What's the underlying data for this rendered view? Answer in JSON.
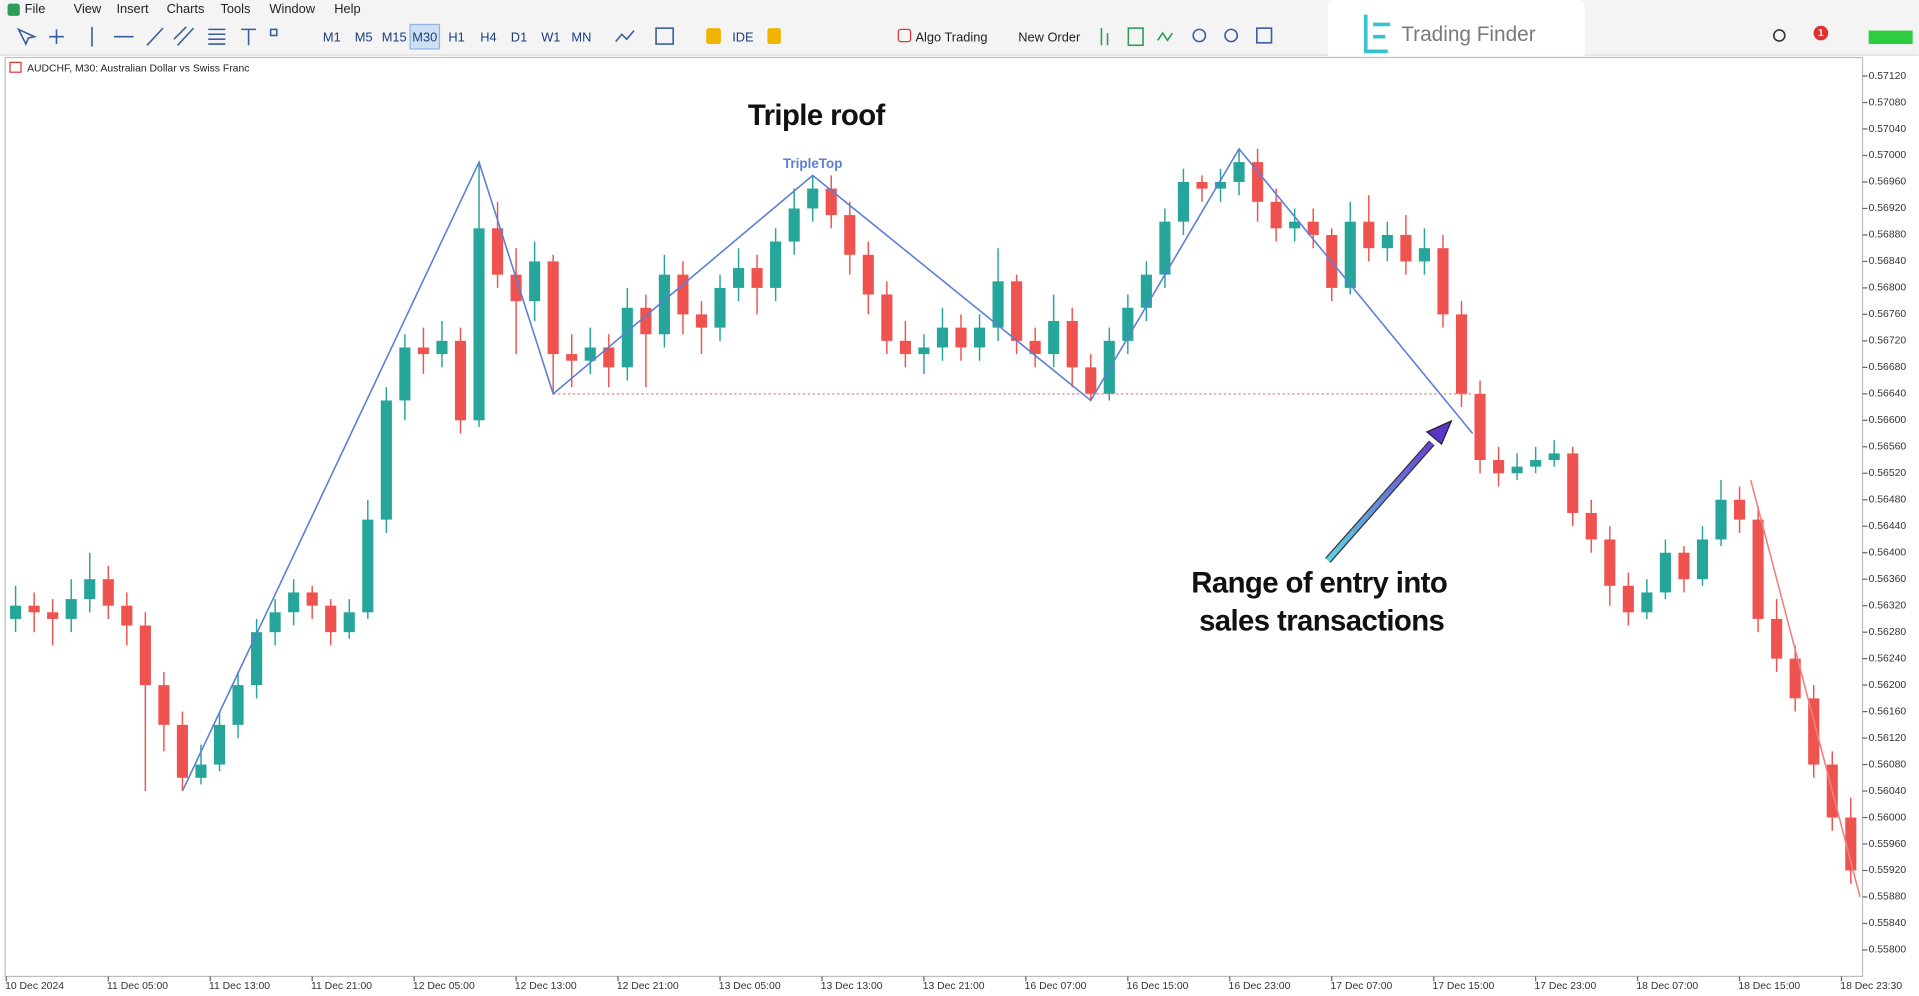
{
  "menu": [
    "File",
    "View",
    "Insert",
    "Charts",
    "Tools",
    "Window",
    "Help"
  ],
  "toolbar": {
    "timeframes": [
      "M1",
      "M5",
      "M15",
      "M30",
      "H1",
      "H4",
      "D1",
      "W1",
      "MN"
    ],
    "active": "M30",
    "ide": "IDE",
    "algo_trading": "Algo Trading",
    "new_order": "New Order",
    "notifications": 1
  },
  "logo": "Trading Finder",
  "chart_data": {
    "type": "candlestick",
    "title": "AUDCHF, M30:  Australian Dollar vs Swiss Franc",
    "bull_color": "#26a69a",
    "bear_color": "#ef5350",
    "xlim": [
      -0.5,
      99.5
    ],
    "ylim": [
      0.5576,
      0.57148
    ],
    "xticks": [
      {
        "value": -0.5,
        "label": "10 Dec 2024"
      },
      {
        "value": 5,
        "label": "11 Dec 05:00"
      },
      {
        "value": 10.5,
        "label": "11 Dec 13:00"
      },
      {
        "value": 16,
        "label": "11 Dec 21:00"
      },
      {
        "value": 21.5,
        "label": "12 Dec 05:00"
      },
      {
        "value": 27,
        "label": "12 Dec 13:00"
      },
      {
        "value": 32.5,
        "label": "12 Dec 21:00"
      },
      {
        "value": 38,
        "label": "13 Dec 05:00"
      },
      {
        "value": 43.5,
        "label": "13 Dec 13:00"
      },
      {
        "value": 49,
        "label": "13 Dec 21:00"
      },
      {
        "value": 54.5,
        "label": "16 Dec 07:00"
      },
      {
        "value": 60,
        "label": "16 Dec 15:00"
      },
      {
        "value": 65.5,
        "label": "16 Dec 23:00"
      },
      {
        "value": 71,
        "label": "17 Dec 07:00"
      },
      {
        "value": 76.5,
        "label": "17 Dec 15:00"
      },
      {
        "value": 82,
        "label": "17 Dec 23:00"
      },
      {
        "value": 87.5,
        "label": "18 Dec 07:00"
      },
      {
        "value": 93,
        "label": "18 Dec 15:00"
      },
      {
        "value": 98.5,
        "label": "18 Dec 23:30"
      }
    ],
    "yticks": [
      {
        "value": 0.5712,
        "label": "0.57120"
      },
      {
        "value": 0.5708,
        "label": "0.57080"
      },
      {
        "value": 0.5704,
        "label": "0.57040"
      },
      {
        "value": 0.57,
        "label": "0.57000"
      },
      {
        "value": 0.5696,
        "label": "0.56960"
      },
      {
        "value": 0.5692,
        "label": "0.56920"
      },
      {
        "value": 0.5688,
        "label": "0.56880"
      },
      {
        "value": 0.5684,
        "label": "0.56840"
      },
      {
        "value": 0.568,
        "label": "0.56800"
      },
      {
        "value": 0.5676,
        "label": "0.56760"
      },
      {
        "value": 0.5672,
        "label": "0.56720"
      },
      {
        "value": 0.5668,
        "label": "0.56680"
      },
      {
        "value": 0.5664,
        "label": "0.56640"
      },
      {
        "value": 0.566,
        "label": "0.56600"
      },
      {
        "value": 0.5656,
        "label": "0.56560"
      },
      {
        "value": 0.5652,
        "label": "0.56520"
      },
      {
        "value": 0.5648,
        "label": "0.56480"
      },
      {
        "value": 0.5644,
        "label": "0.56440"
      },
      {
        "value": 0.564,
        "label": "0.56400"
      },
      {
        "value": 0.5636,
        "label": "0.56360"
      },
      {
        "value": 0.5632,
        "label": "0.56320"
      },
      {
        "value": 0.5628,
        "label": "0.56280"
      },
      {
        "value": 0.5624,
        "label": "0.56240"
      },
      {
        "value": 0.562,
        "label": "0.56200"
      },
      {
        "value": 0.5616,
        "label": "0.56160"
      },
      {
        "value": 0.5612,
        "label": "0.56120"
      },
      {
        "value": 0.5608,
        "label": "0.56080"
      },
      {
        "value": 0.5604,
        "label": "0.56040"
      },
      {
        "value": 0.56,
        "label": "0.56000"
      },
      {
        "value": 0.5596,
        "label": "0.55960"
      },
      {
        "value": 0.5592,
        "label": "0.55920"
      },
      {
        "value": 0.5588,
        "label": "0.55880"
      },
      {
        "value": 0.5584,
        "label": "0.55840"
      },
      {
        "value": 0.558,
        "label": "0.55800"
      }
    ],
    "candles": [
      [
        0.563,
        0.5635,
        0.5628,
        0.5632
      ],
      [
        0.5632,
        0.5634,
        0.5628,
        0.5631
      ],
      [
        0.5631,
        0.5633,
        0.5626,
        0.563
      ],
      [
        0.563,
        0.5636,
        0.5628,
        0.5633
      ],
      [
        0.5633,
        0.564,
        0.5631,
        0.5636
      ],
      [
        0.5636,
        0.5638,
        0.563,
        0.5632
      ],
      [
        0.5632,
        0.5634,
        0.5626,
        0.5629
      ],
      [
        0.5629,
        0.5631,
        0.5604,
        0.562
      ],
      [
        0.562,
        0.5622,
        0.561,
        0.5614
      ],
      [
        0.5614,
        0.5616,
        0.5604,
        0.5606
      ],
      [
        0.5606,
        0.5611,
        0.5605,
        0.5608
      ],
      [
        0.5608,
        0.5616,
        0.5607,
        0.5614
      ],
      [
        0.5614,
        0.5622,
        0.5612,
        0.562
      ],
      [
        0.562,
        0.563,
        0.5618,
        0.5628
      ],
      [
        0.5628,
        0.5633,
        0.5626,
        0.5631
      ],
      [
        0.5631,
        0.5636,
        0.5629,
        0.5634
      ],
      [
        0.5634,
        0.5635,
        0.563,
        0.5632
      ],
      [
        0.5632,
        0.5633,
        0.5626,
        0.5628
      ],
      [
        0.5628,
        0.5633,
        0.5627,
        0.5631
      ],
      [
        0.5631,
        0.5648,
        0.563,
        0.5645
      ],
      [
        0.5645,
        0.5665,
        0.5643,
        0.5663
      ],
      [
        0.5663,
        0.5673,
        0.566,
        0.5671
      ],
      [
        0.5671,
        0.5674,
        0.5667,
        0.567
      ],
      [
        0.567,
        0.5675,
        0.5668,
        0.5672
      ],
      [
        0.5672,
        0.5674,
        0.5658,
        0.566
      ],
      [
        0.566,
        0.5699,
        0.5659,
        0.5689
      ],
      [
        0.5689,
        0.5693,
        0.568,
        0.5682
      ],
      [
        0.5682,
        0.5686,
        0.567,
        0.5678
      ],
      [
        0.5678,
        0.5687,
        0.5675,
        0.5684
      ],
      [
        0.5684,
        0.5685,
        0.5664,
        0.567
      ],
      [
        0.567,
        0.5673,
        0.5665,
        0.5669
      ],
      [
        0.5669,
        0.5674,
        0.5667,
        0.5671
      ],
      [
        0.5671,
        0.5673,
        0.5665,
        0.5668
      ],
      [
        0.5668,
        0.568,
        0.5666,
        0.5677
      ],
      [
        0.5677,
        0.5679,
        0.5665,
        0.5673
      ],
      [
        0.5673,
        0.5685,
        0.5671,
        0.5682
      ],
      [
        0.5682,
        0.5684,
        0.5673,
        0.5676
      ],
      [
        0.5676,
        0.5678,
        0.567,
        0.5674
      ],
      [
        0.5674,
        0.5682,
        0.5672,
        0.568
      ],
      [
        0.568,
        0.5686,
        0.5678,
        0.5683
      ],
      [
        0.5683,
        0.5685,
        0.5676,
        0.568
      ],
      [
        0.568,
        0.5689,
        0.5678,
        0.5687
      ],
      [
        0.5687,
        0.5695,
        0.5685,
        0.5692
      ],
      [
        0.5692,
        0.5697,
        0.569,
        0.5695
      ],
      [
        0.5695,
        0.5697,
        0.5689,
        0.5691
      ],
      [
        0.5691,
        0.5693,
        0.5682,
        0.5685
      ],
      [
        0.5685,
        0.5687,
        0.5676,
        0.5679
      ],
      [
        0.5679,
        0.5681,
        0.567,
        0.5672
      ],
      [
        0.5672,
        0.5675,
        0.5668,
        0.567
      ],
      [
        0.567,
        0.5673,
        0.5667,
        0.5671
      ],
      [
        0.5671,
        0.5677,
        0.5669,
        0.5674
      ],
      [
        0.5674,
        0.5676,
        0.5669,
        0.5671
      ],
      [
        0.5671,
        0.5676,
        0.5669,
        0.5674
      ],
      [
        0.5674,
        0.5686,
        0.5672,
        0.5681
      ],
      [
        0.5681,
        0.5682,
        0.567,
        0.5672
      ],
      [
        0.5672,
        0.5674,
        0.5668,
        0.567
      ],
      [
        0.567,
        0.5679,
        0.5668,
        0.5675
      ],
      [
        0.5675,
        0.5677,
        0.5665,
        0.5668
      ],
      [
        0.5668,
        0.567,
        0.5663,
        0.5664
      ],
      [
        0.5664,
        0.5674,
        0.5663,
        0.5672
      ],
      [
        0.5672,
        0.5679,
        0.567,
        0.5677
      ],
      [
        0.5677,
        0.5684,
        0.5675,
        0.5682
      ],
      [
        0.5682,
        0.5692,
        0.568,
        0.569
      ],
      [
        0.569,
        0.5698,
        0.5688,
        0.5696
      ],
      [
        0.5696,
        0.5697,
        0.5693,
        0.5695
      ],
      [
        0.5695,
        0.5698,
        0.5693,
        0.5696
      ],
      [
        0.5696,
        0.5701,
        0.5694,
        0.5699
      ],
      [
        0.5699,
        0.5701,
        0.569,
        0.5693
      ],
      [
        0.5693,
        0.5695,
        0.5687,
        0.5689
      ],
      [
        0.5689,
        0.5692,
        0.5687,
        0.569
      ],
      [
        0.569,
        0.5692,
        0.5686,
        0.5688
      ],
      [
        0.5688,
        0.5689,
        0.5678,
        0.568
      ],
      [
        0.568,
        0.5693,
        0.5679,
        0.569
      ],
      [
        0.569,
        0.5694,
        0.5684,
        0.5686
      ],
      [
        0.5686,
        0.569,
        0.5684,
        0.5688
      ],
      [
        0.5688,
        0.5691,
        0.5682,
        0.5684
      ],
      [
        0.5684,
        0.5689,
        0.5682,
        0.5686
      ],
      [
        0.5686,
        0.5688,
        0.5674,
        0.5676
      ],
      [
        0.5676,
        0.5678,
        0.5662,
        0.5664
      ],
      [
        0.5664,
        0.5666,
        0.5652,
        0.5654
      ],
      [
        0.5654,
        0.5656,
        0.565,
        0.5652
      ],
      [
        0.5652,
        0.5655,
        0.5651,
        0.5653
      ],
      [
        0.5653,
        0.5656,
        0.5652,
        0.5654
      ],
      [
        0.5654,
        0.5657,
        0.5653,
        0.5655
      ],
      [
        0.5655,
        0.5656,
        0.5644,
        0.5646
      ],
      [
        0.5646,
        0.5648,
        0.564,
        0.5642
      ],
      [
        0.5642,
        0.5644,
        0.5632,
        0.5635
      ],
      [
        0.5635,
        0.5637,
        0.5629,
        0.5631
      ],
      [
        0.5631,
        0.5636,
        0.563,
        0.5634
      ],
      [
        0.5634,
        0.5642,
        0.5633,
        0.564
      ],
      [
        0.564,
        0.5641,
        0.5634,
        0.5636
      ],
      [
        0.5636,
        0.5644,
        0.5635,
        0.5642
      ],
      [
        0.5642,
        0.5651,
        0.5641,
        0.5648
      ],
      [
        0.5648,
        0.565,
        0.5643,
        0.5645
      ],
      [
        0.5645,
        0.5647,
        0.5628,
        0.563
      ],
      [
        0.563,
        0.5633,
        0.5622,
        0.5624
      ],
      [
        0.5624,
        0.5626,
        0.5616,
        0.5618
      ],
      [
        0.5618,
        0.562,
        0.5606,
        0.5608
      ],
      [
        0.5608,
        0.561,
        0.5598,
        0.56
      ],
      [
        0.56,
        0.5603,
        0.559,
        0.5592
      ]
    ],
    "pattern": {
      "name": "TripleTop",
      "color": "#5b7fd6",
      "x": [
        9,
        25,
        29,
        43,
        58,
        66,
        78.6
      ],
      "y": [
        0.5604,
        0.5699,
        0.5664,
        0.5697,
        0.5663,
        0.5701,
        0.5658
      ]
    },
    "neckline": {
      "color": "#f08080",
      "x": [
        29,
        78.6
      ],
      "y": [
        0.5664,
        0.5664
      ]
    },
    "trend": {
      "color": "#f08080",
      "x": [
        93.6,
        99.5
      ],
      "y": [
        0.5651,
        0.5588
      ]
    },
    "annotations": {
      "title": "Triple roof",
      "entry": [
        "Range of entry into",
        "sales transactions"
      ]
    }
  }
}
